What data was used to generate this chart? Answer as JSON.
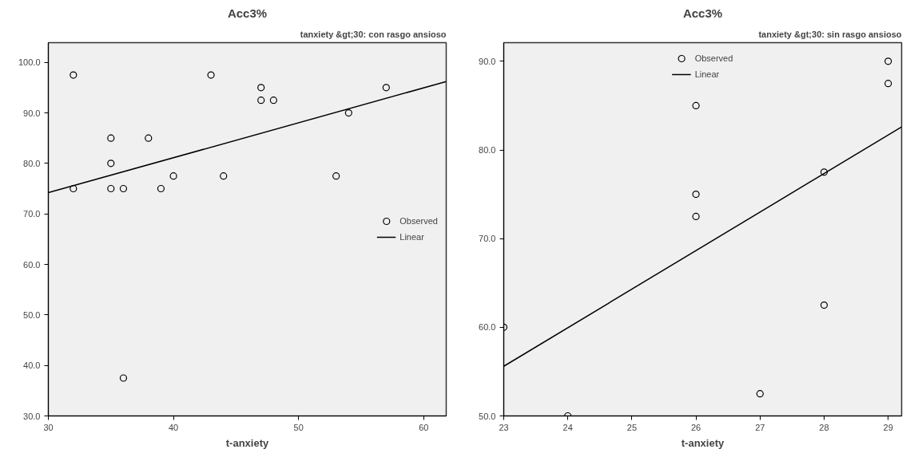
{
  "chart_data": [
    {
      "type": "scatter",
      "title": "Acc3%",
      "subtitle": "tanxiety &gt;30: con rasgo ansioso",
      "xlabel": "t-anxiety",
      "xlim": [
        30,
        61.8
      ],
      "ylim": [
        30,
        103.9
      ],
      "xticks": [
        30,
        40,
        50,
        60
      ],
      "yticks": [
        {
          "value": 30,
          "label": "30.0"
        },
        {
          "value": 40,
          "label": "40.0"
        },
        {
          "value": 50,
          "label": "50.0"
        },
        {
          "value": 60,
          "label": "60.0"
        },
        {
          "value": 70,
          "label": "70.0"
        },
        {
          "value": 80,
          "label": "80.0"
        },
        {
          "value": 90,
          "label": "90.0"
        },
        {
          "value": 100,
          "label": "100.0"
        }
      ],
      "grid": false,
      "legend": "right",
      "series": [
        {
          "name": "Observed",
          "marker": "circle",
          "color": "#000000",
          "x": [
            32,
            32,
            35,
            35,
            35,
            36,
            36,
            38,
            39,
            40,
            43,
            44,
            47,
            47,
            48,
            53,
            54,
            57
          ],
          "values": [
            97.5,
            75,
            85,
            80,
            75,
            75,
            37.5,
            85,
            75,
            77.5,
            97.5,
            77.5,
            95,
            92.5,
            92.5,
            77.5,
            90,
            95
          ]
        },
        {
          "name": "Linear",
          "type": "line",
          "color": "#000000",
          "x": [
            30,
            61.8
          ],
          "values": [
            74.2,
            96.2
          ]
        }
      ]
    },
    {
      "type": "scatter",
      "title": "Acc3%",
      "subtitle": "tanxiety &gt;30: sin rasgo ansioso",
      "xlabel": "t-anxiety",
      "xlim": [
        23,
        29.21
      ],
      "ylim": [
        50,
        92.1
      ],
      "xticks": [
        23,
        24,
        25,
        26,
        27,
        28,
        29
      ],
      "yticks": [
        {
          "value": 50,
          "label": "50.0"
        },
        {
          "value": 60,
          "label": "60.0"
        },
        {
          "value": 70,
          "label": "70.0"
        },
        {
          "value": 80,
          "label": "80.0"
        },
        {
          "value": 90,
          "label": "90.0"
        }
      ],
      "grid": false,
      "legend": "top",
      "series": [
        {
          "name": "Observed",
          "marker": "circle",
          "color": "#000000",
          "x": [
            23,
            24,
            26,
            26,
            26,
            27,
            28,
            28,
            29,
            29
          ],
          "values": [
            60,
            50,
            85,
            75,
            72.5,
            52.5,
            77.5,
            62.5,
            90,
            87.5
          ]
        },
        {
          "name": "Linear",
          "type": "line",
          "color": "#000000",
          "x": [
            23,
            29.21
          ],
          "values": [
            55.6,
            82.6
          ]
        }
      ]
    }
  ]
}
